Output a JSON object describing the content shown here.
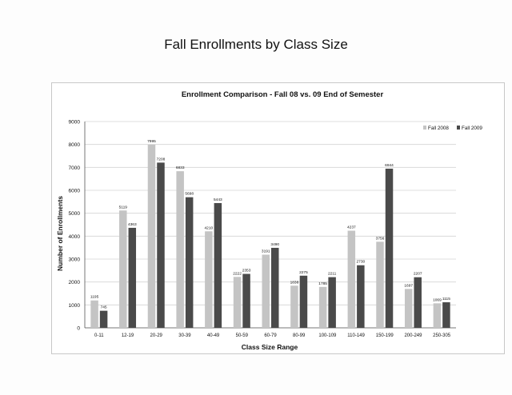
{
  "page": {
    "title": "Fall Enrollments by Class Size"
  },
  "chart_data": {
    "type": "bar",
    "title": "Enrollment Comparison - Fall 08 vs. 09 End of Semester",
    "xlabel": "Class Size Range",
    "ylabel": "Number of Enrollments",
    "ylim": [
      0,
      9000
    ],
    "yticks": [
      0,
      1000,
      2000,
      3000,
      4000,
      5000,
      6000,
      7000,
      8000,
      9000
    ],
    "grid": true,
    "legend_position": "top-right",
    "categories": [
      "0-11",
      "12-19",
      "20-29",
      "30-39",
      "40-49",
      "50-59",
      "60-79",
      "80-99",
      "100-109",
      "110-149",
      "150-199",
      "200-249",
      "250-305"
    ],
    "series": [
      {
        "name": "Fall 2008",
        "color": "#c4c4c4",
        "values": [
          1195,
          5119,
          7995,
          6833,
          4210,
          2222,
          3191,
          1838,
          1785,
          4237,
          3756,
          1697,
          1069
        ],
        "labels": [
          "1195",
          "5119",
          "7995",
          "6833",
          "4210",
          "2222",
          "3191",
          "1838",
          "1785",
          "4237",
          "3756",
          "1697",
          "1069"
        ]
      },
      {
        "name": "Fall 2009",
        "color": "#4a4a4a",
        "values": [
          745,
          4363,
          7208,
          5698,
          5443,
          2353,
          3490,
          2275,
          2211,
          2730,
          6944,
          2207,
          1115
        ],
        "labels": [
          "745",
          "4363",
          "7208",
          "5698",
          "5443",
          "2353",
          "3490",
          "2275",
          "2211",
          "2730",
          "6944",
          "2207",
          "1115"
        ]
      }
    ]
  }
}
